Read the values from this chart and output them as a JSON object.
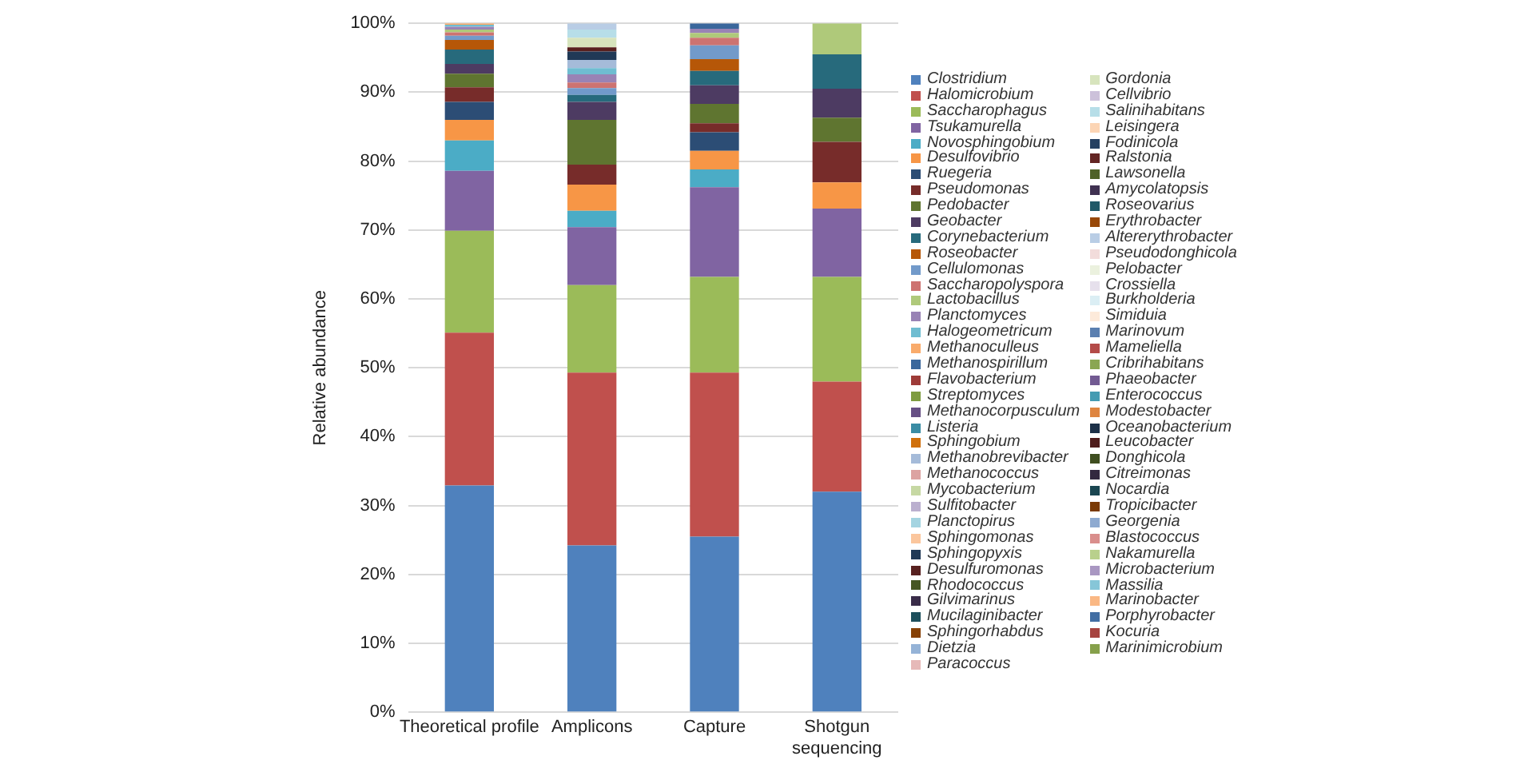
{
  "chart_data": {
    "type": "bar",
    "stacked": true,
    "ylabel": "Relative abundance",
    "categories": [
      "Theoretical profile",
      "Amplicons",
      "Capture",
      "Shotgun sequencing"
    ],
    "ylim": [
      0,
      100
    ],
    "yticks": [
      {
        "value": 0,
        "label": "0%"
      },
      {
        "value": 10,
        "label": "10%"
      },
      {
        "value": 20,
        "label": "20%"
      },
      {
        "value": 30,
        "label": "30%"
      },
      {
        "value": 40,
        "label": "40%"
      },
      {
        "value": 50,
        "label": "50%"
      },
      {
        "value": 60,
        "label": "60%"
      },
      {
        "value": 70,
        "label": "70%"
      },
      {
        "value": 80,
        "label": "80%"
      },
      {
        "value": 90,
        "label": "90%"
      },
      {
        "value": 100,
        "label": "100%"
      }
    ],
    "grid": "y",
    "legend": "right",
    "series": [
      {
        "name": "Clostridium",
        "color": "#4f81bd",
        "values": [
          32.9,
          24.2,
          25.5,
          32
        ]
      },
      {
        "name": "Halomicrobium",
        "color": "#c0504d",
        "values": [
          22.2,
          25.1,
          23.8,
          16
        ]
      },
      {
        "name": "Saccharophagus",
        "color": "#9bbb59",
        "values": [
          14.8,
          12.7,
          13.9,
          15.2
        ]
      },
      {
        "name": "Tsukamurella",
        "color": "#8064a2",
        "values": [
          8.7,
          8.4,
          13.0,
          9.9
        ]
      },
      {
        "name": "Novosphingobium",
        "color": "#4bacc6",
        "values": [
          4.4,
          2.4,
          2.6,
          0
        ]
      },
      {
        "name": "Desulfovibrio",
        "color": "#f79646",
        "values": [
          3.0,
          3.8,
          2.7,
          3.8
        ]
      },
      {
        "name": "Ruegeria",
        "color": "#2c4d75",
        "values": [
          2.6,
          0,
          2.7,
          0
        ]
      },
      {
        "name": "Pseudomonas",
        "color": "#772c2a",
        "values": [
          2.1,
          2.9,
          1.3,
          5.9
        ]
      },
      {
        "name": "Pedobacter",
        "color": "#5f7530",
        "values": [
          2.0,
          6.5,
          2.8,
          3.5
        ]
      },
      {
        "name": "Geobacter",
        "color": "#4d3b62",
        "values": [
          1.4,
          2.6,
          2.7,
          4.2
        ]
      },
      {
        "name": "Corynebacterium",
        "color": "#276a7c",
        "values": [
          2.1,
          1.0,
          2.1,
          5.0
        ]
      },
      {
        "name": "Roseobacter",
        "color": "#b65708",
        "values": [
          1.4,
          0,
          1.7,
          0
        ]
      },
      {
        "name": "Cellulomonas",
        "color": "#729aca",
        "values": [
          0.6,
          1.0,
          2.0,
          0
        ]
      },
      {
        "name": "Saccharopolyspora",
        "color": "#cd7371",
        "values": [
          0.5,
          0.8,
          1.1,
          0
        ]
      },
      {
        "name": "Lactobacillus",
        "color": "#afc97a",
        "values": [
          0.4,
          0,
          0.7,
          4.5
        ]
      },
      {
        "name": "Planctomyces",
        "color": "#9983b5",
        "values": [
          0.4,
          1.2,
          0.6,
          0
        ]
      },
      {
        "name": "Halogeometricum",
        "color": "#6fbdd1",
        "values": [
          0.3,
          0.9,
          0,
          0
        ]
      },
      {
        "name": "Methanoculleus",
        "color": "#f9ab6b",
        "values": [
          0.2,
          0,
          0,
          0
        ]
      },
      {
        "name": "Methanospirillum",
        "color": "#3a679c",
        "values": [
          0,
          0,
          0.8,
          0
        ]
      },
      {
        "name": "Flavobacterium",
        "color": "#9e3b38",
        "values": [
          0,
          0,
          0,
          0
        ]
      },
      {
        "name": "Streptomyces",
        "color": "#7e9c40",
        "values": [
          0,
          0,
          0,
          0
        ]
      },
      {
        "name": "Methanocorpusculum",
        "color": "#664f84",
        "values": [
          0,
          0,
          0,
          0
        ]
      },
      {
        "name": "Listeria",
        "color": "#3a8ca4",
        "values": [
          0,
          0,
          0,
          0
        ]
      },
      {
        "name": "Sphingobium",
        "color": "#d0700c",
        "values": [
          0,
          0,
          0,
          0
        ]
      },
      {
        "name": "Methanobrevibacter",
        "color": "#a5bbd9",
        "values": [
          0,
          1.2,
          0,
          0
        ]
      },
      {
        "name": "Methanococcus",
        "color": "#dca3a2",
        "values": [
          0,
          0,
          0,
          0
        ]
      },
      {
        "name": "Mycobacterium",
        "color": "#c6d8a3",
        "values": [
          0,
          0,
          0,
          0
        ]
      },
      {
        "name": "Sulfitobacter",
        "color": "#bbb0cf",
        "values": [
          0,
          0,
          0,
          0
        ]
      },
      {
        "name": "Planctopirus",
        "color": "#a4d4e1",
        "values": [
          0,
          0,
          0,
          0
        ]
      },
      {
        "name": "Sphingomonas",
        "color": "#fbc69d",
        "values": [
          0,
          0,
          0,
          0
        ]
      },
      {
        "name": "Sphingopyxis",
        "color": "#203956",
        "values": [
          0,
          1.2,
          0,
          0
        ]
      },
      {
        "name": "Desulfuromonas",
        "color": "#582120",
        "values": [
          0,
          0.6,
          0,
          0
        ]
      },
      {
        "name": "Rhodococcus",
        "color": "#465723",
        "values": [
          0,
          0,
          0,
          0
        ]
      },
      {
        "name": "Gilvimarinus",
        "color": "#392c49",
        "values": [
          0,
          0,
          0,
          0
        ]
      },
      {
        "name": "Mucilaginibacter",
        "color": "#1d4f5c",
        "values": [
          0,
          0,
          0,
          0
        ]
      },
      {
        "name": "Sphingorhabdus",
        "color": "#874106",
        "values": [
          0,
          0,
          0,
          0
        ]
      },
      {
        "name": "Dietzia",
        "color": "#95b3d7",
        "values": [
          0,
          0,
          0,
          0
        ]
      },
      {
        "name": "Paracoccus",
        "color": "#e6b9b8",
        "values": [
          0,
          0,
          0,
          0
        ]
      },
      {
        "name": "Gordonia",
        "color": "#d7e4bd",
        "values": [
          0,
          1.4,
          0,
          0
        ]
      },
      {
        "name": "Cellvibrio",
        "color": "#ccc1da",
        "values": [
          0,
          0,
          0,
          0
        ]
      },
      {
        "name": "Salinihabitans",
        "color": "#b7dee8",
        "values": [
          0,
          1.2,
          0,
          0
        ]
      },
      {
        "name": "Leisingera",
        "color": "#fcd5b5",
        "values": [
          0,
          0,
          0,
          0
        ]
      },
      {
        "name": "Fodinicola",
        "color": "#254061",
        "values": [
          0,
          0,
          0,
          0
        ]
      },
      {
        "name": "Ralstonia",
        "color": "#632523",
        "values": [
          0,
          0,
          0,
          0
        ]
      },
      {
        "name": "Lawsonella",
        "color": "#4f6228",
        "values": [
          0,
          0,
          0,
          0
        ]
      },
      {
        "name": "Amycolatopsis",
        "color": "#3f3151",
        "values": [
          0,
          0,
          0,
          0
        ]
      },
      {
        "name": "Roseovarius",
        "color": "#215968",
        "values": [
          0,
          0,
          0,
          0
        ]
      },
      {
        "name": "Erythrobacter",
        "color": "#984807",
        "values": [
          0,
          0,
          0,
          0
        ]
      },
      {
        "name": "Altererythrobacter",
        "color": "#b9cde5",
        "values": [
          0,
          0.9,
          0,
          0
        ]
      },
      {
        "name": "Pseudodonghicola",
        "color": "#f2dcdb",
        "values": [
          0,
          0,
          0,
          0
        ]
      },
      {
        "name": "Pelobacter",
        "color": "#ebf1de",
        "values": [
          0,
          0,
          0,
          0
        ]
      },
      {
        "name": "Crossiella",
        "color": "#e6e0ec",
        "values": [
          0,
          0,
          0,
          0
        ]
      },
      {
        "name": "Burkholderia",
        "color": "#dbeef4",
        "values": [
          0,
          0,
          0,
          0
        ]
      },
      {
        "name": "Simiduia",
        "color": "#fdeada",
        "values": [
          0,
          0,
          0,
          0
        ]
      },
      {
        "name": "Marinovum",
        "color": "#5a7fb0",
        "values": [
          0,
          0,
          0,
          0
        ]
      },
      {
        "name": "Mameliella",
        "color": "#b44b48",
        "values": [
          0,
          0,
          0,
          0
        ]
      },
      {
        "name": "Cribrihabitans",
        "color": "#8aa652",
        "values": [
          0,
          0,
          0,
          0
        ]
      },
      {
        "name": "Phaeobacter",
        "color": "#725a92",
        "values": [
          0,
          0,
          0,
          0
        ]
      },
      {
        "name": "Enterococcus",
        "color": "#449bb2",
        "values": [
          0,
          0,
          0,
          0
        ]
      },
      {
        "name": "Modestobacter",
        "color": "#de8540",
        "values": [
          0,
          0,
          0,
          0
        ]
      },
      {
        "name": "Oceanobacterium",
        "color": "#1c3048",
        "values": [
          0,
          0,
          0,
          0
        ]
      },
      {
        "name": "Leucobacter",
        "color": "#4f1d1c",
        "values": [
          0,
          0,
          0,
          0
        ]
      },
      {
        "name": "Donghicola",
        "color": "#3f4e20",
        "values": [
          0,
          0,
          0,
          0
        ]
      },
      {
        "name": "Citreimonas",
        "color": "#33283f",
        "values": [
          0,
          0,
          0,
          0
        ]
      },
      {
        "name": "Nocardia",
        "color": "#1a4651",
        "values": [
          0,
          0,
          0,
          0
        ]
      },
      {
        "name": "Tropicibacter",
        "color": "#7a3a05",
        "values": [
          0,
          0,
          0,
          0
        ]
      },
      {
        "name": "Georgenia",
        "color": "#8eaad0",
        "values": [
          0,
          0,
          0,
          0
        ]
      },
      {
        "name": "Blastococcus",
        "color": "#d98e8c",
        "values": [
          0,
          0,
          0,
          0
        ]
      },
      {
        "name": "Nakamurella",
        "color": "#b9d08c",
        "values": [
          0,
          0,
          0,
          0
        ]
      },
      {
        "name": "Microbacterium",
        "color": "#a997c2",
        "values": [
          0,
          0,
          0,
          0
        ]
      },
      {
        "name": "Massilia",
        "color": "#86c6d8",
        "values": [
          0,
          0,
          0,
          0
        ]
      },
      {
        "name": "Marinobacter",
        "color": "#fab884",
        "values": [
          0,
          0,
          0,
          0
        ]
      },
      {
        "name": "Porphyrobacter",
        "color": "#426ea3",
        "values": [
          0,
          0,
          0,
          0
        ]
      },
      {
        "name": "Kocuria",
        "color": "#a6433f",
        "values": [
          0,
          0,
          0,
          0
        ]
      },
      {
        "name": "Marinimicrobium",
        "color": "#86a04b",
        "values": [
          0,
          0,
          0,
          0
        ]
      }
    ]
  }
}
